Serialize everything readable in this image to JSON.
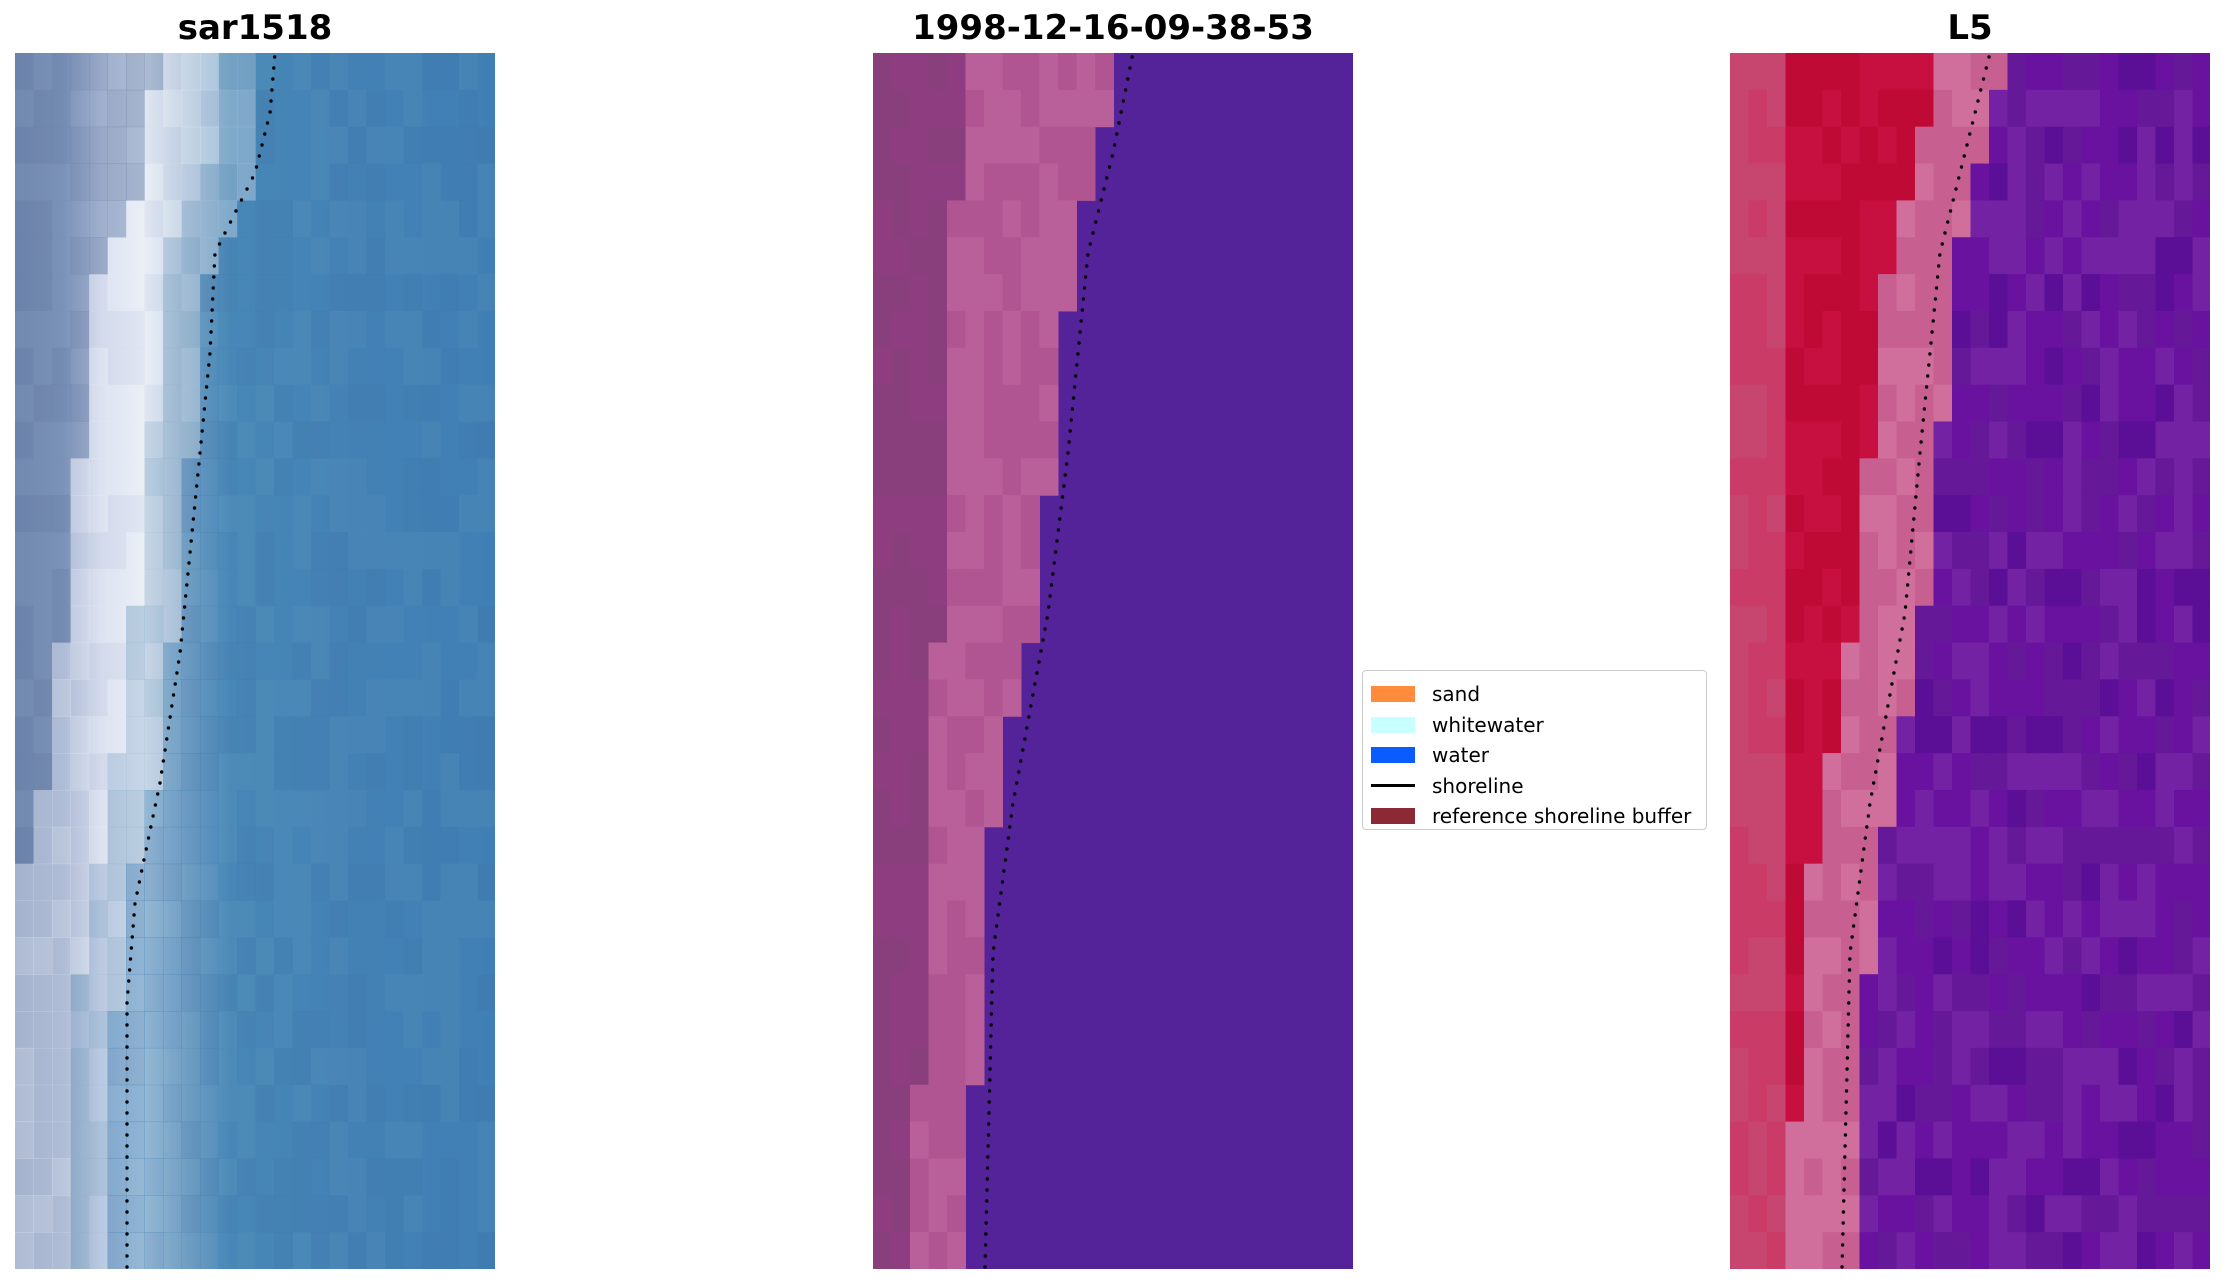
{
  "panels": [
    {
      "title": "sar1518",
      "image": "satellite RGB composite"
    },
    {
      "title": "1998-12-16-09-38-53",
      "image": "classified image"
    },
    {
      "title": "L5",
      "image": "MNDWI index image"
    }
  ],
  "legend": {
    "items": [
      {
        "label": "sand",
        "color": "#ff8c3c",
        "kind": "patch"
      },
      {
        "label": "whitewater",
        "color": "#c8ffff",
        "kind": "patch"
      },
      {
        "label": "water",
        "color": "#0a5cff",
        "kind": "patch"
      },
      {
        "label": "shoreline",
        "color": "#000000",
        "kind": "line"
      },
      {
        "label": "reference shoreline buffer",
        "color": "#8b2a35",
        "kind": "patch"
      }
    ]
  },
  "colors": {
    "classified_water": "#542299",
    "classified_land": "#a34a89",
    "index_land": "#c10834",
    "index_water": "#6c1aa0"
  }
}
